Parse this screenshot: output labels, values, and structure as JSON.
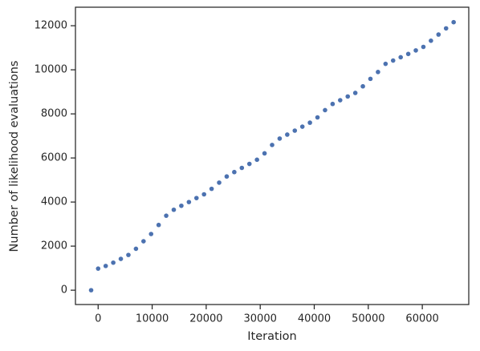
{
  "chart_data": {
    "type": "scatter",
    "x_label": "Iteration",
    "y_label": "Number of likelihood evaluations",
    "color": "#4c72b0",
    "x": [
      -1300,
      0,
      1400,
      2800,
      4200,
      5600,
      7000,
      8400,
      9800,
      11200,
      12600,
      14000,
      15400,
      16800,
      18200,
      19600,
      21000,
      22400,
      23800,
      25200,
      26600,
      28000,
      29400,
      30800,
      32200,
      33600,
      35000,
      36400,
      37800,
      39200,
      40600,
      42000,
      43400,
      44800,
      46200,
      47600,
      49000,
      50400,
      51800,
      53200,
      54600,
      56000,
      57400,
      58800,
      60200,
      61600,
      63000,
      64400,
      65800
    ],
    "values": [
      0,
      980,
      1100,
      1250,
      1420,
      1600,
      1880,
      2220,
      2550,
      2960,
      3380,
      3650,
      3830,
      4000,
      4180,
      4350,
      4600,
      4880,
      5160,
      5360,
      5550,
      5730,
      5920,
      6210,
      6590,
      6880,
      7060,
      7240,
      7420,
      7600,
      7840,
      8170,
      8450,
      8620,
      8790,
      8950,
      9250,
      9590,
      9900,
      10270,
      10420,
      10570,
      10720,
      10880,
      11040,
      11320,
      11600,
      11880,
      12160
    ],
    "xlim": [
      -4200,
      68600
    ],
    "ylim": [
      -650,
      12840
    ],
    "xticks": [
      0,
      10000,
      20000,
      30000,
      40000,
      50000,
      60000
    ],
    "yticks": [
      0,
      2000,
      4000,
      6000,
      8000,
      10000,
      12000
    ]
  }
}
